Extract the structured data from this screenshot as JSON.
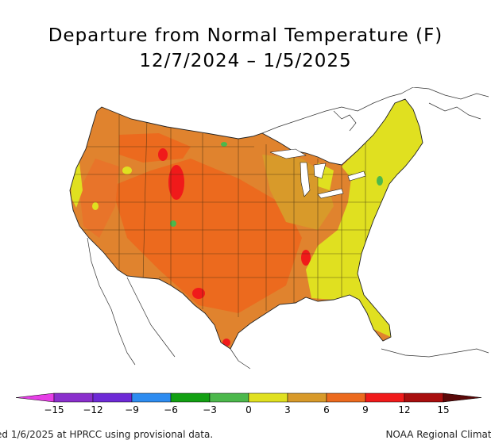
{
  "title": {
    "line1": "Departure from Normal Temperature (F)",
    "line2": "12/7/2024 – 1/5/2025"
  },
  "legend": {
    "ticks": [
      "−15",
      "−12",
      "−9",
      "−6",
      "−3",
      "0",
      "3",
      "6",
      "9",
      "12",
      "15"
    ],
    "bins": [
      {
        "color": "#e63ee6"
      },
      {
        "color": "#8a2fcc"
      },
      {
        "color": "#6e2ad6"
      },
      {
        "color": "#2e8cf0"
      },
      {
        "color": "#12a012"
      },
      {
        "color": "#4cb84c"
      },
      {
        "color": "#e0e020"
      },
      {
        "color": "#d89a2a"
      },
      {
        "color": "#ec6a1e"
      },
      {
        "color": "#f01a1a"
      },
      {
        "color": "#a80e0e"
      },
      {
        "color": "#5a0808"
      }
    ]
  },
  "footer": {
    "left": "ed 1/6/2025 at HPRCC using provisional data.",
    "right": "NOAA Regional Climate"
  },
  "map_colors": {
    "base": "#e0832e",
    "warm": "#ec6a1e",
    "hot": "#f01a1a",
    "mild": "#d89a2a",
    "near_normal": "#e0e020",
    "cool": "#4cb84c"
  }
}
